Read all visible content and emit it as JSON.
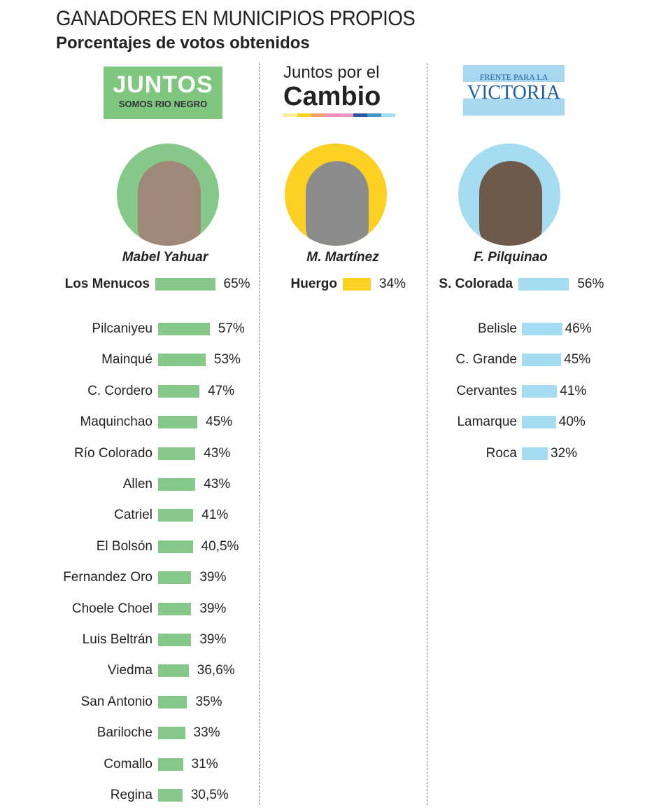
{
  "header": {
    "title": "GANADORES EN MUNICIPIOS PROPIOS",
    "subtitle": "Porcentajes de votos obtenidos"
  },
  "logos": {
    "juntos": {
      "line1": "JUNTOS",
      "line2": "SOMOS RIO NEGRO"
    },
    "cambio": {
      "line1": "Juntos por el",
      "line2": "Cambio"
    },
    "fpv": {
      "line1": "FRENTE PARA LA",
      "line2": "VICTORIA"
    }
  },
  "colors": {
    "juntos": "#85c88a",
    "cambio": "#fcd121",
    "fpv": "#a6dcf1"
  },
  "chart_data": [
    {
      "type": "bar",
      "orientation": "horizontal",
      "party": "Juntos Somos Rio Negro",
      "candidate": "Mabel Yahuar",
      "categories": [
        "Los Menucos",
        "Pilcaniyeu",
        "Mainqué",
        "C. Cordero",
        "Maquinchao",
        "Río Colorado",
        "Allen",
        "Catriel",
        "El Bolsón",
        "Fernandez Oro",
        "Choele Choel",
        "Luis Beltrán",
        "Viedma",
        "San Antonio",
        "Bariloche",
        "Comallo",
        "Regina"
      ],
      "values": [
        65,
        57,
        53,
        47,
        45,
        43,
        43,
        41,
        40.5,
        39,
        39,
        39,
        36.6,
        35,
        33,
        31,
        30.5
      ],
      "labels": [
        "65%",
        "57%",
        "53%",
        "47%",
        "45%",
        "43%",
        "43%",
        "41%",
        "40,5%",
        "39%",
        "39%",
        "39%",
        "36,6%",
        "35%",
        "33%",
        "31%",
        "30,5%"
      ]
    },
    {
      "type": "bar",
      "orientation": "horizontal",
      "party": "Juntos por el Cambio",
      "candidate": "M. Martínez",
      "categories": [
        "Huergo"
      ],
      "values": [
        34
      ],
      "labels": [
        "34%"
      ]
    },
    {
      "type": "bar",
      "orientation": "horizontal",
      "party": "Frente para la Victoria",
      "candidate": "F. Pilquinao",
      "categories": [
        "S. Colorada",
        "Belisle",
        "C. Grande",
        "Cervantes",
        "Lamarque",
        "Roca"
      ],
      "values": [
        56,
        46,
        45,
        41,
        40,
        32
      ],
      "labels": [
        "56%",
        "46%",
        "45%",
        "41%",
        "40%",
        "32%"
      ]
    }
  ]
}
